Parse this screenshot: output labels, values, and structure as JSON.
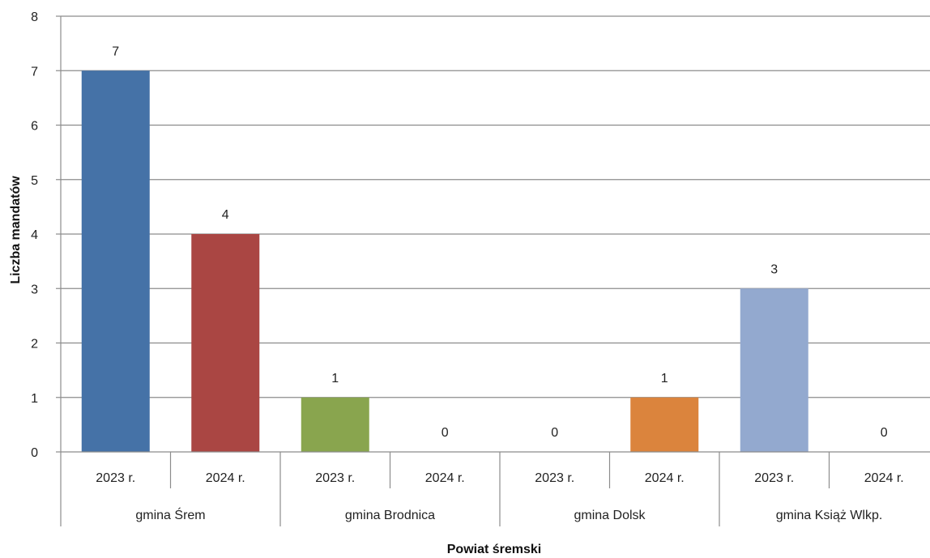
{
  "chart_data": {
    "type": "bar",
    "title": "",
    "xlabel": "Powiat śremski",
    "ylabel": "Liczba mandatów",
    "ylim": [
      0,
      8
    ],
    "yticks": [
      0,
      1,
      2,
      3,
      4,
      5,
      6,
      7,
      8
    ],
    "grid": true,
    "groups": [
      "gmina Śrem",
      "gmina Brodnica",
      "gmina Dolsk",
      "gmina Książ Wlkp."
    ],
    "categories": [
      "2023 r.",
      "2024 r.",
      "2023 r.",
      "2024 r.",
      "2023 r.",
      "2024 r.",
      "2023 r.",
      "2024 r."
    ],
    "values": [
      7,
      4,
      1,
      0,
      0,
      1,
      3,
      0
    ],
    "data_labels": [
      "7",
      "4",
      "1",
      "0",
      "0",
      "1",
      "3",
      "0"
    ],
    "colors": [
      "#4572A7",
      "#AA4643",
      "#89A54E",
      "#71588F",
      "#4198AF",
      "#DB843D",
      "#93A9CF",
      "#D19392"
    ]
  }
}
